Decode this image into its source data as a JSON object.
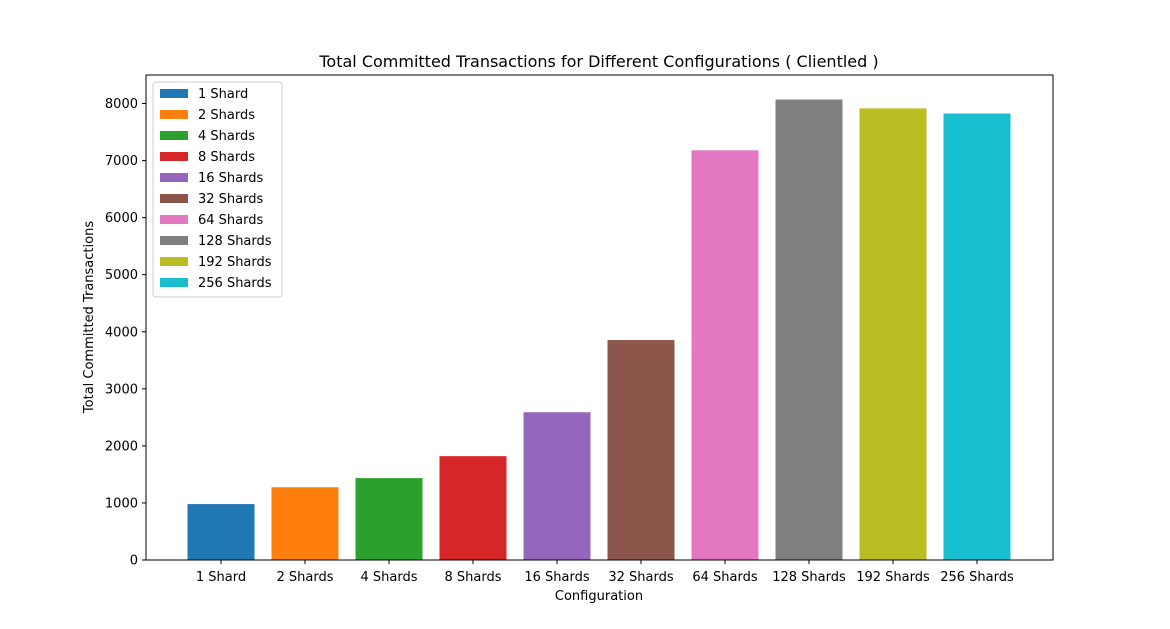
{
  "chart_data": {
    "type": "bar",
    "title": "Total Committed Transactions for Different Configurations ( Clientled )",
    "xlabel": "Configuration",
    "ylabel": "Total Committed Transactions",
    "categories": [
      "1 Shard",
      "2 Shards",
      "4 Shards",
      "8 Shards",
      "16 Shards",
      "32 Shards",
      "64 Shards",
      "128 Shards",
      "192 Shards",
      "256 Shards"
    ],
    "values": [
      980,
      1275,
      1435,
      1820,
      2590,
      3855,
      7180,
      8070,
      7915,
      7825
    ],
    "colors": [
      "#1f77b4",
      "#ff7f0e",
      "#2ca02c",
      "#d62728",
      "#9467bd",
      "#8c564b",
      "#e377c2",
      "#7f7f7f",
      "#bcbd22",
      "#17becf"
    ],
    "ylim": [
      0,
      8500
    ],
    "yticks": [
      0,
      1000,
      2000,
      3000,
      4000,
      5000,
      6000,
      7000,
      8000
    ],
    "legend": {
      "position": "top-left",
      "entries": [
        "1 Shard",
        "2 Shards",
        "4 Shards",
        "8 Shards",
        "16 Shards",
        "32 Shards",
        "64 Shards",
        "128 Shards",
        "192 Shards",
        "256 Shards"
      ]
    },
    "grid": false
  }
}
